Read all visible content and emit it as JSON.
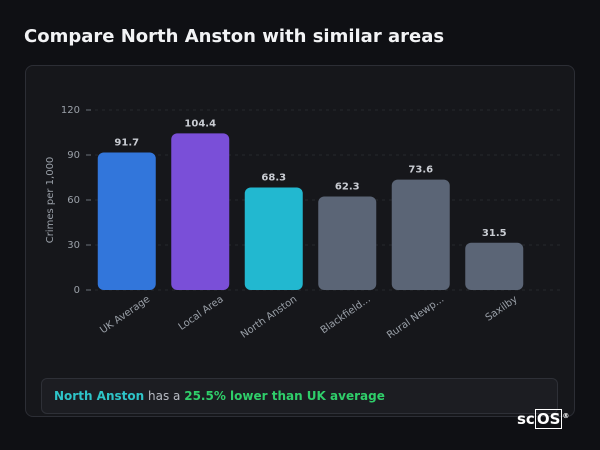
{
  "header": {
    "title": "Compare North Anston with similar areas"
  },
  "chart_data": {
    "type": "bar",
    "ylabel": "Crimes per 1,000",
    "categories": [
      "UK Average",
      "Local Area",
      "North Anston",
      "Blackfield...",
      "Rural Newp...",
      "Saxilby"
    ],
    "values": [
      91.7,
      104.4,
      68.3,
      62.3,
      73.6,
      31.5
    ],
    "colors": [
      "#3276db",
      "#7a4fd8",
      "#22b8d0",
      "#5b6576",
      "#5b6576",
      "#5b6576"
    ],
    "ylim": [
      0,
      120
    ],
    "yticks": [
      0,
      30,
      60,
      90,
      120
    ],
    "grid": true
  },
  "summary": {
    "area": "North Anston",
    "text": "has a",
    "comparison": "25.5% lower than UK average"
  },
  "logo": {
    "prefix": "sc",
    "boxed": "OS",
    "mark": "®"
  }
}
